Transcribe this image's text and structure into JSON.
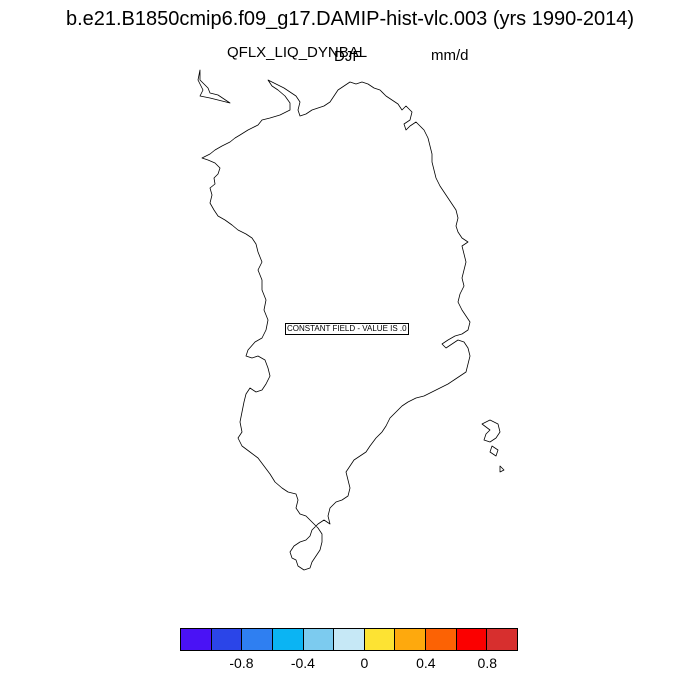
{
  "title": "b.e21.B1850cmip6.f09_g17.DAMIP-hist-vlc.003 (yrs 1990-2014)",
  "variable": "QFLX_LIQ_DYNBAL",
  "season": "DJF",
  "units": "mm/d",
  "notice": "CONSTANT FIELD - VALUE IS .0",
  "colorbar": {
    "colors": [
      "#4a12f5",
      "#2b45e8",
      "#2f7ff1",
      "#0bb4f3",
      "#7ccbef",
      "#c6e8f6",
      "#fde333",
      "#fea90d",
      "#fc6204",
      "#fb0000",
      "#d72f2e"
    ],
    "ticks": [
      {
        "label": "-0.8",
        "value": -0.8
      },
      {
        "label": "-0.4",
        "value": -0.4
      },
      {
        "label": "0",
        "value": 0
      },
      {
        "label": "0.4",
        "value": 0.4
      },
      {
        "label": "0.8",
        "value": 0.8
      }
    ]
  }
}
